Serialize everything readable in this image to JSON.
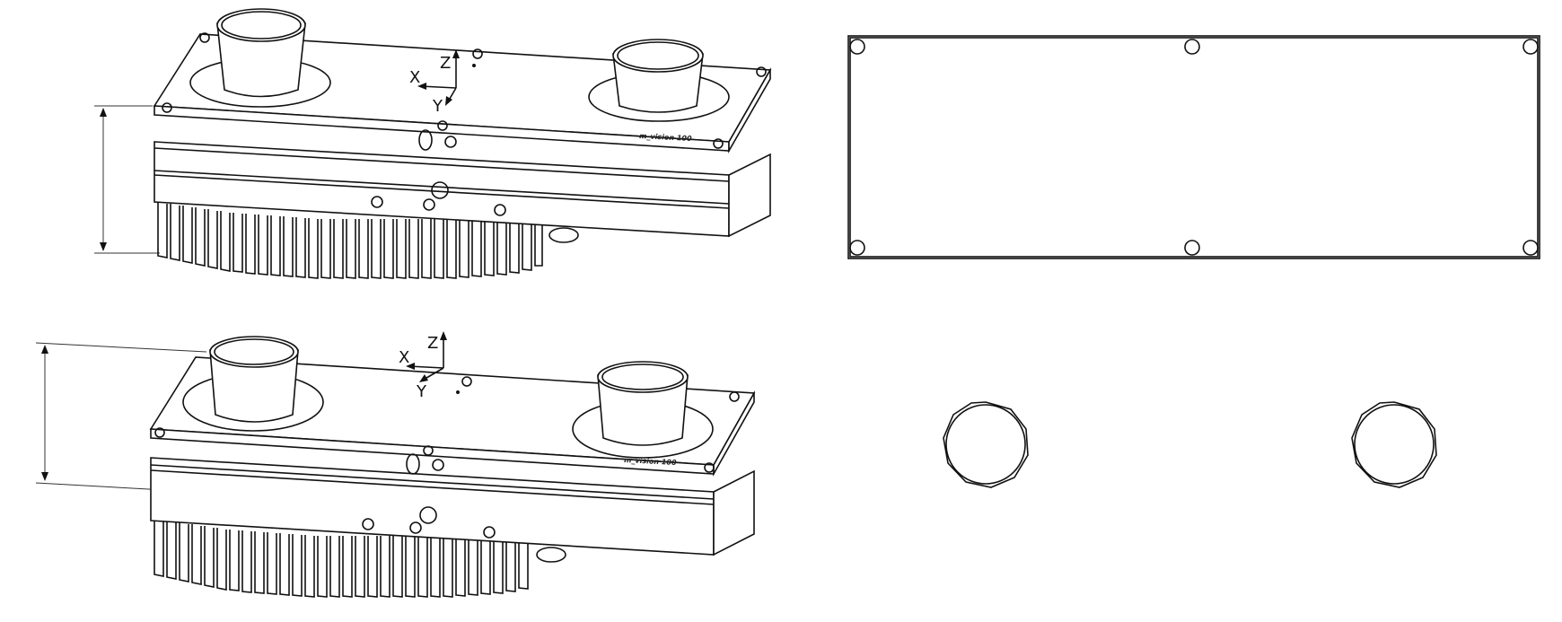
{
  "views": {
    "iso_top": {
      "axis_x": "X",
      "axis_y": "Y",
      "axis_z": "Z",
      "brand_text": "m_vision 100"
    },
    "iso_bottom": {
      "axis_x": "X",
      "axis_y": "Y",
      "axis_z": "Z",
      "brand_text": "m_vision 100"
    }
  },
  "colors": {
    "line": "#111111",
    "background": "#ffffff"
  }
}
